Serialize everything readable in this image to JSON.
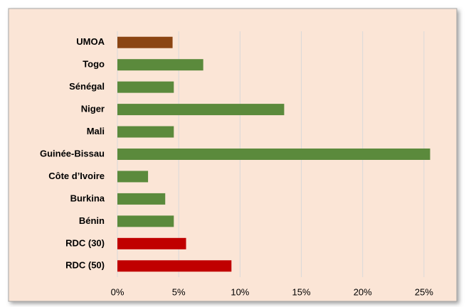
{
  "chart_data": {
    "type": "bar",
    "orientation": "horizontal",
    "categories": [
      "UMOA",
      "Togo",
      "Sénégal",
      "Niger",
      "Mali",
      "Guinée-Bissau",
      "Côte d’Ivoire",
      "Burkina",
      "Bénin",
      "RDC (30)",
      "RDC (50)"
    ],
    "values": [
      4.5,
      7.0,
      4.6,
      13.6,
      4.6,
      25.5,
      2.5,
      3.9,
      4.6,
      5.6,
      9.3
    ],
    "colors": [
      "#8b4513",
      "#5b8a3c",
      "#5b8a3c",
      "#5b8a3c",
      "#5b8a3c",
      "#5b8a3c",
      "#5b8a3c",
      "#5b8a3c",
      "#5b8a3c",
      "#c00000",
      "#c00000"
    ],
    "xlim": [
      0,
      27.5
    ],
    "xticks": [
      {
        "value": 0,
        "label": "0%"
      },
      {
        "value": 5,
        "label": "5%"
      },
      {
        "value": 10,
        "label": "10%"
      },
      {
        "value": 15,
        "label": "15%"
      },
      {
        "value": 20,
        "label": "20%"
      },
      {
        "value": 25,
        "label": "25%"
      }
    ],
    "grid": true
  }
}
